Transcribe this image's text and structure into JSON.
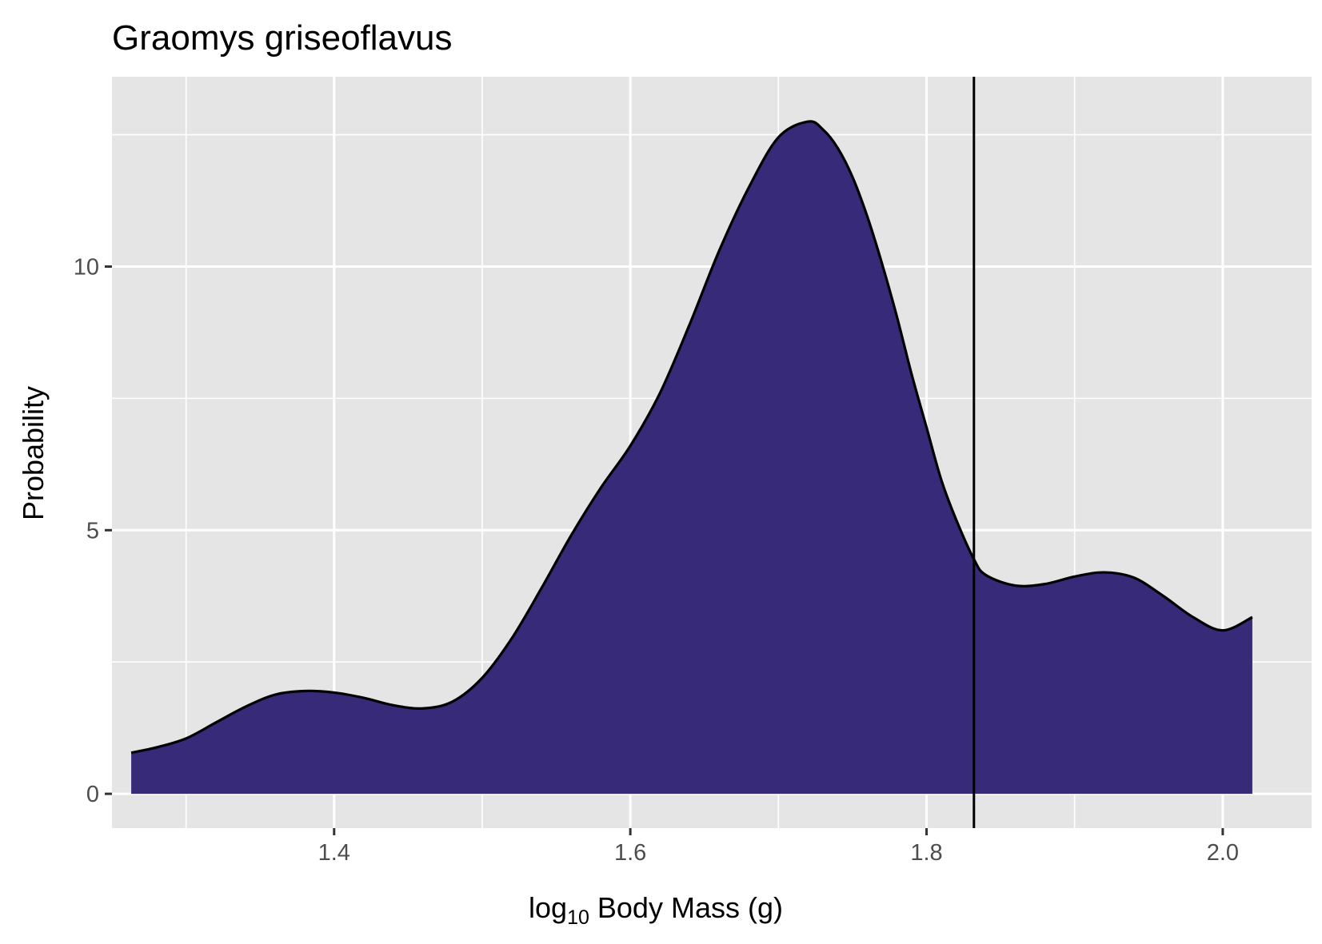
{
  "chart_data": {
    "type": "area",
    "title": "Graomys griseoflavus",
    "xlabel": {
      "prefix": "log",
      "subscript": "10",
      "suffix": " Body Mass (g)"
    },
    "ylabel": "Probability",
    "xlim": [
      1.25,
      2.06
    ],
    "ylim": [
      -0.65,
      13.6
    ],
    "x_ticks": [
      1.4,
      1.6,
      1.8,
      2.0
    ],
    "x_tick_labels": [
      "1.4",
      "1.6",
      "1.8",
      "2.0"
    ],
    "x_minor_ticks": [
      1.3,
      1.5,
      1.7,
      1.9
    ],
    "y_ticks": [
      0,
      5,
      10
    ],
    "y_tick_labels": [
      "0",
      "5",
      "10"
    ],
    "y_minor_ticks": [
      2.5,
      7.5,
      12.5
    ],
    "grid": true,
    "vline_x": 1.832,
    "fill_color": "#372a79",
    "panel_color": "#e5e5e5",
    "series": [
      {
        "x": [
          1.263,
          1.28,
          1.3,
          1.32,
          1.34,
          1.36,
          1.38,
          1.4,
          1.42,
          1.44,
          1.46,
          1.48,
          1.5,
          1.52,
          1.54,
          1.56,
          1.58,
          1.6,
          1.62,
          1.64,
          1.66,
          1.68,
          1.7,
          1.72,
          1.73,
          1.74,
          1.75,
          1.76,
          1.77,
          1.78,
          1.79,
          1.8,
          1.81,
          1.82,
          1.832,
          1.84,
          1.86,
          1.88,
          1.9,
          1.92,
          1.94,
          1.96,
          1.98,
          2.0,
          2.02
        ],
        "y": [
          0.78,
          0.88,
          1.05,
          1.35,
          1.65,
          1.88,
          1.95,
          1.92,
          1.82,
          1.68,
          1.62,
          1.75,
          2.2,
          2.95,
          3.9,
          4.9,
          5.8,
          6.6,
          7.6,
          8.9,
          10.3,
          11.5,
          12.45,
          12.75,
          12.6,
          12.25,
          11.7,
          10.95,
          10.05,
          9.05,
          7.95,
          6.95,
          5.95,
          5.2,
          4.45,
          4.15,
          3.95,
          3.98,
          4.12,
          4.2,
          4.1,
          3.75,
          3.35,
          3.1,
          3.35
        ]
      }
    ]
  }
}
